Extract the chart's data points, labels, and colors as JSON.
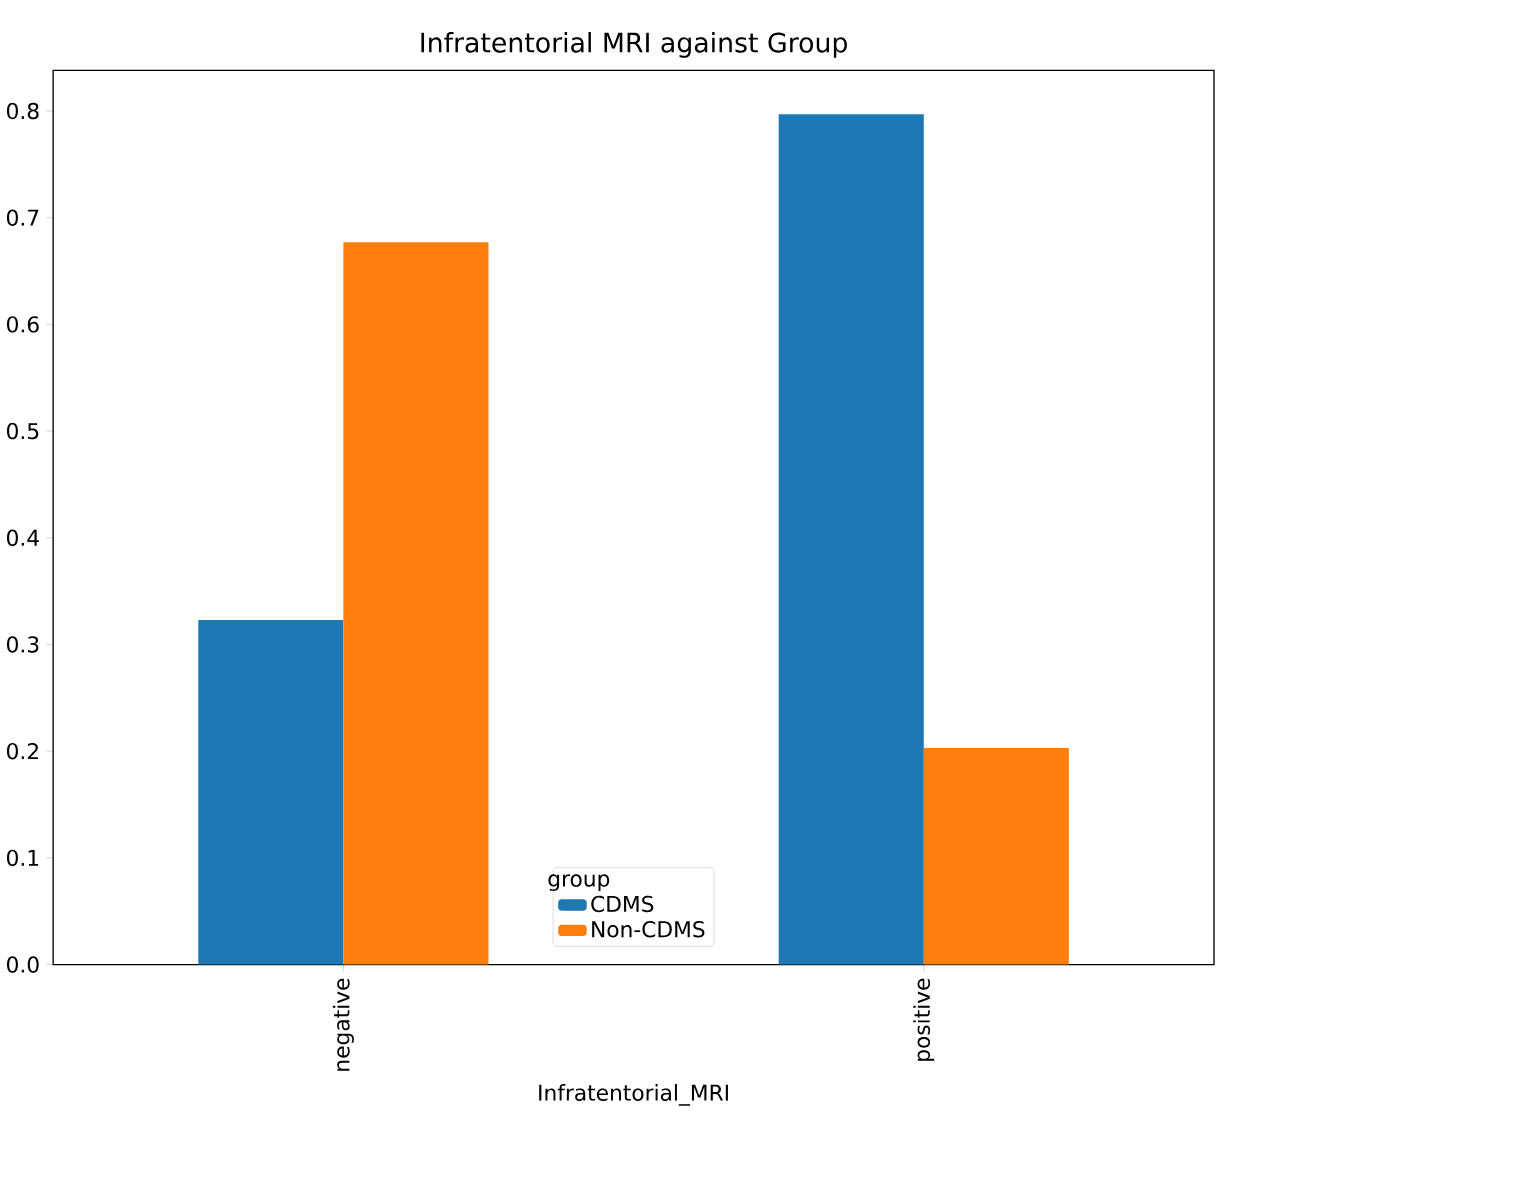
{
  "chart_data": {
    "type": "bar",
    "title": "Infratentorial MRI against Group",
    "xlabel": "Infratentorial_MRI",
    "legend_title": "group",
    "categories": [
      "negative",
      "positive"
    ],
    "series": [
      {
        "name": "CDMS",
        "color": "#1f77b4",
        "values": [
          0.323,
          0.797
        ]
      },
      {
        "name": "Non-CDMS",
        "color": "#ff7f0e",
        "values": [
          0.677,
          0.203
        ]
      }
    ],
    "ylim": [
      0,
      0.838
    ],
    "yticks": [
      {
        "value": 0,
        "label": "0.0"
      },
      {
        "value": 0.1,
        "label": "0.1"
      },
      {
        "value": 0.2,
        "label": "0.2"
      },
      {
        "value": 0.3,
        "label": "0.3"
      },
      {
        "value": 0.4,
        "label": "0.4"
      },
      {
        "value": 0.5,
        "label": "0.5"
      },
      {
        "value": 0.6,
        "label": "0.6"
      },
      {
        "value": 0.7,
        "label": "0.7"
      },
      {
        "value": 0.8,
        "label": "0.8"
      }
    ],
    "legend": "bottom",
    "grid": false
  }
}
